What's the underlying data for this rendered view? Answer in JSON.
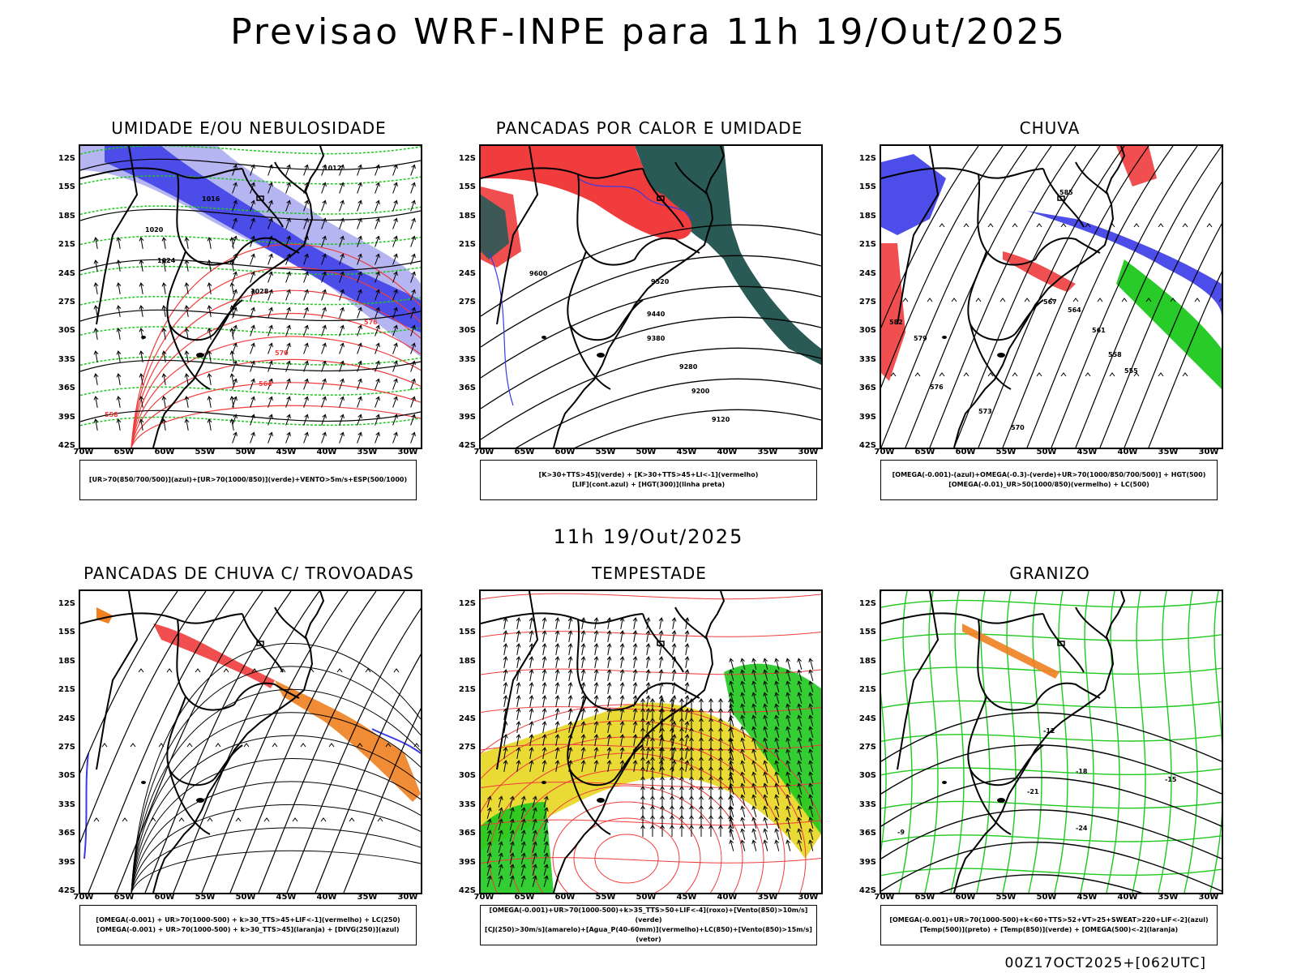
{
  "title": "Previsao WRF-INPE  para 11h 19/Out/2025",
  "subtitle": "11h 19/Out/2025",
  "footer": "00Z17OCT2025+[062UTC]",
  "axes": {
    "lat": [
      "12S",
      "15S",
      "18S",
      "21S",
      "24S",
      "27S",
      "30S",
      "33S",
      "36S",
      "39S",
      "42S"
    ],
    "lon": [
      "70W",
      "65W",
      "60W",
      "55W",
      "50W",
      "45W",
      "40W",
      "35W",
      "30W"
    ]
  },
  "panels": [
    {
      "id": "umidade",
      "title": "UMIDADE E/OU NEBULOSIDADE",
      "legend": [
        "[UR>70(850/700/500)](azul)+[UR>70(1000/850)](verde)+VENTO>5m/s+ESP(500/1000)"
      ],
      "labels": [
        "1012",
        "1016",
        "1020",
        "1024",
        "1028",
        "576",
        "570",
        "564",
        "558"
      ]
    },
    {
      "id": "pancadas",
      "title": "PANCADAS POR CALOR E UMIDADE",
      "legend": [
        "[K>30+TTS>45](verde) + [K>30+TTS>45+LI<-1](vermelho)",
        "[LIF](cont.azul) + [HGT(300)](linha preta)"
      ],
      "labels": [
        "9600",
        "9520",
        "9440",
        "9380",
        "9280",
        "9200",
        "9120"
      ]
    },
    {
      "id": "chuva",
      "title": "CHUVA",
      "legend": [
        "[OMEGA(-0.001)-(azul)+OMEGA(-0.3)-(verde)+UR>70(1000/850/700/500)] + HGT(500)",
        "[OMEGA(-0.01)_UR>50(1000/850)(vermelho) + LC(500)"
      ],
      "labels": [
        "585",
        "582",
        "579",
        "576",
        "573",
        "570",
        "567",
        "564",
        "561",
        "558",
        "555"
      ]
    },
    {
      "id": "trovoadas",
      "title": "PANCADAS DE CHUVA C/ TROVOADAS",
      "legend": [
        "[OMEGA(-0.001) + UR>70(1000-500) + k>30_TTS>45+LIF<-1](vermelho) + LC(250)",
        "[OMEGA(-0.001) + UR>70(1000-500) + k>30_TTS>45](laranja) + [DIVG(250)](azul)"
      ],
      "labels": []
    },
    {
      "id": "tempestade",
      "title": "TEMPESTADE",
      "legend": [
        "[OMEGA(-0.001)+UR>70(1000-500)+k>35_TTS>50+LIF<-4](roxo)+[Vento(850)>10m/s](verde)",
        "[CJ(250)>30m/s](amarelo)+[Agua_P(40-60mm)](vermelho)+LC(850)+[Vento(850)>15m/s](vetor)"
      ],
      "labels": []
    },
    {
      "id": "granizo",
      "title": "GRANIZO",
      "legend": [
        "[OMEGA(-0.001)+UR>70(1000-500)+k<60+TTS>52+VT>25+SWEAT>220+LIF<-2](azul)",
        "[Temp(500)](preto) + [Temp(850)](verde) + [OMEGA(500)<-2](laranja)"
      ],
      "labels": [
        "-12",
        "-15",
        "-18",
        "-21",
        "-24",
        "-9"
      ]
    }
  ],
  "colors": {
    "blue": "#3a3ae8",
    "lightblue": "#a8a8f0",
    "green": "#1ec81e",
    "red": "#f03c3c",
    "darkteal": "#2a5a55",
    "yellow": "#e8d82a",
    "orange": "#f08020",
    "magenta": "#c832c8"
  }
}
